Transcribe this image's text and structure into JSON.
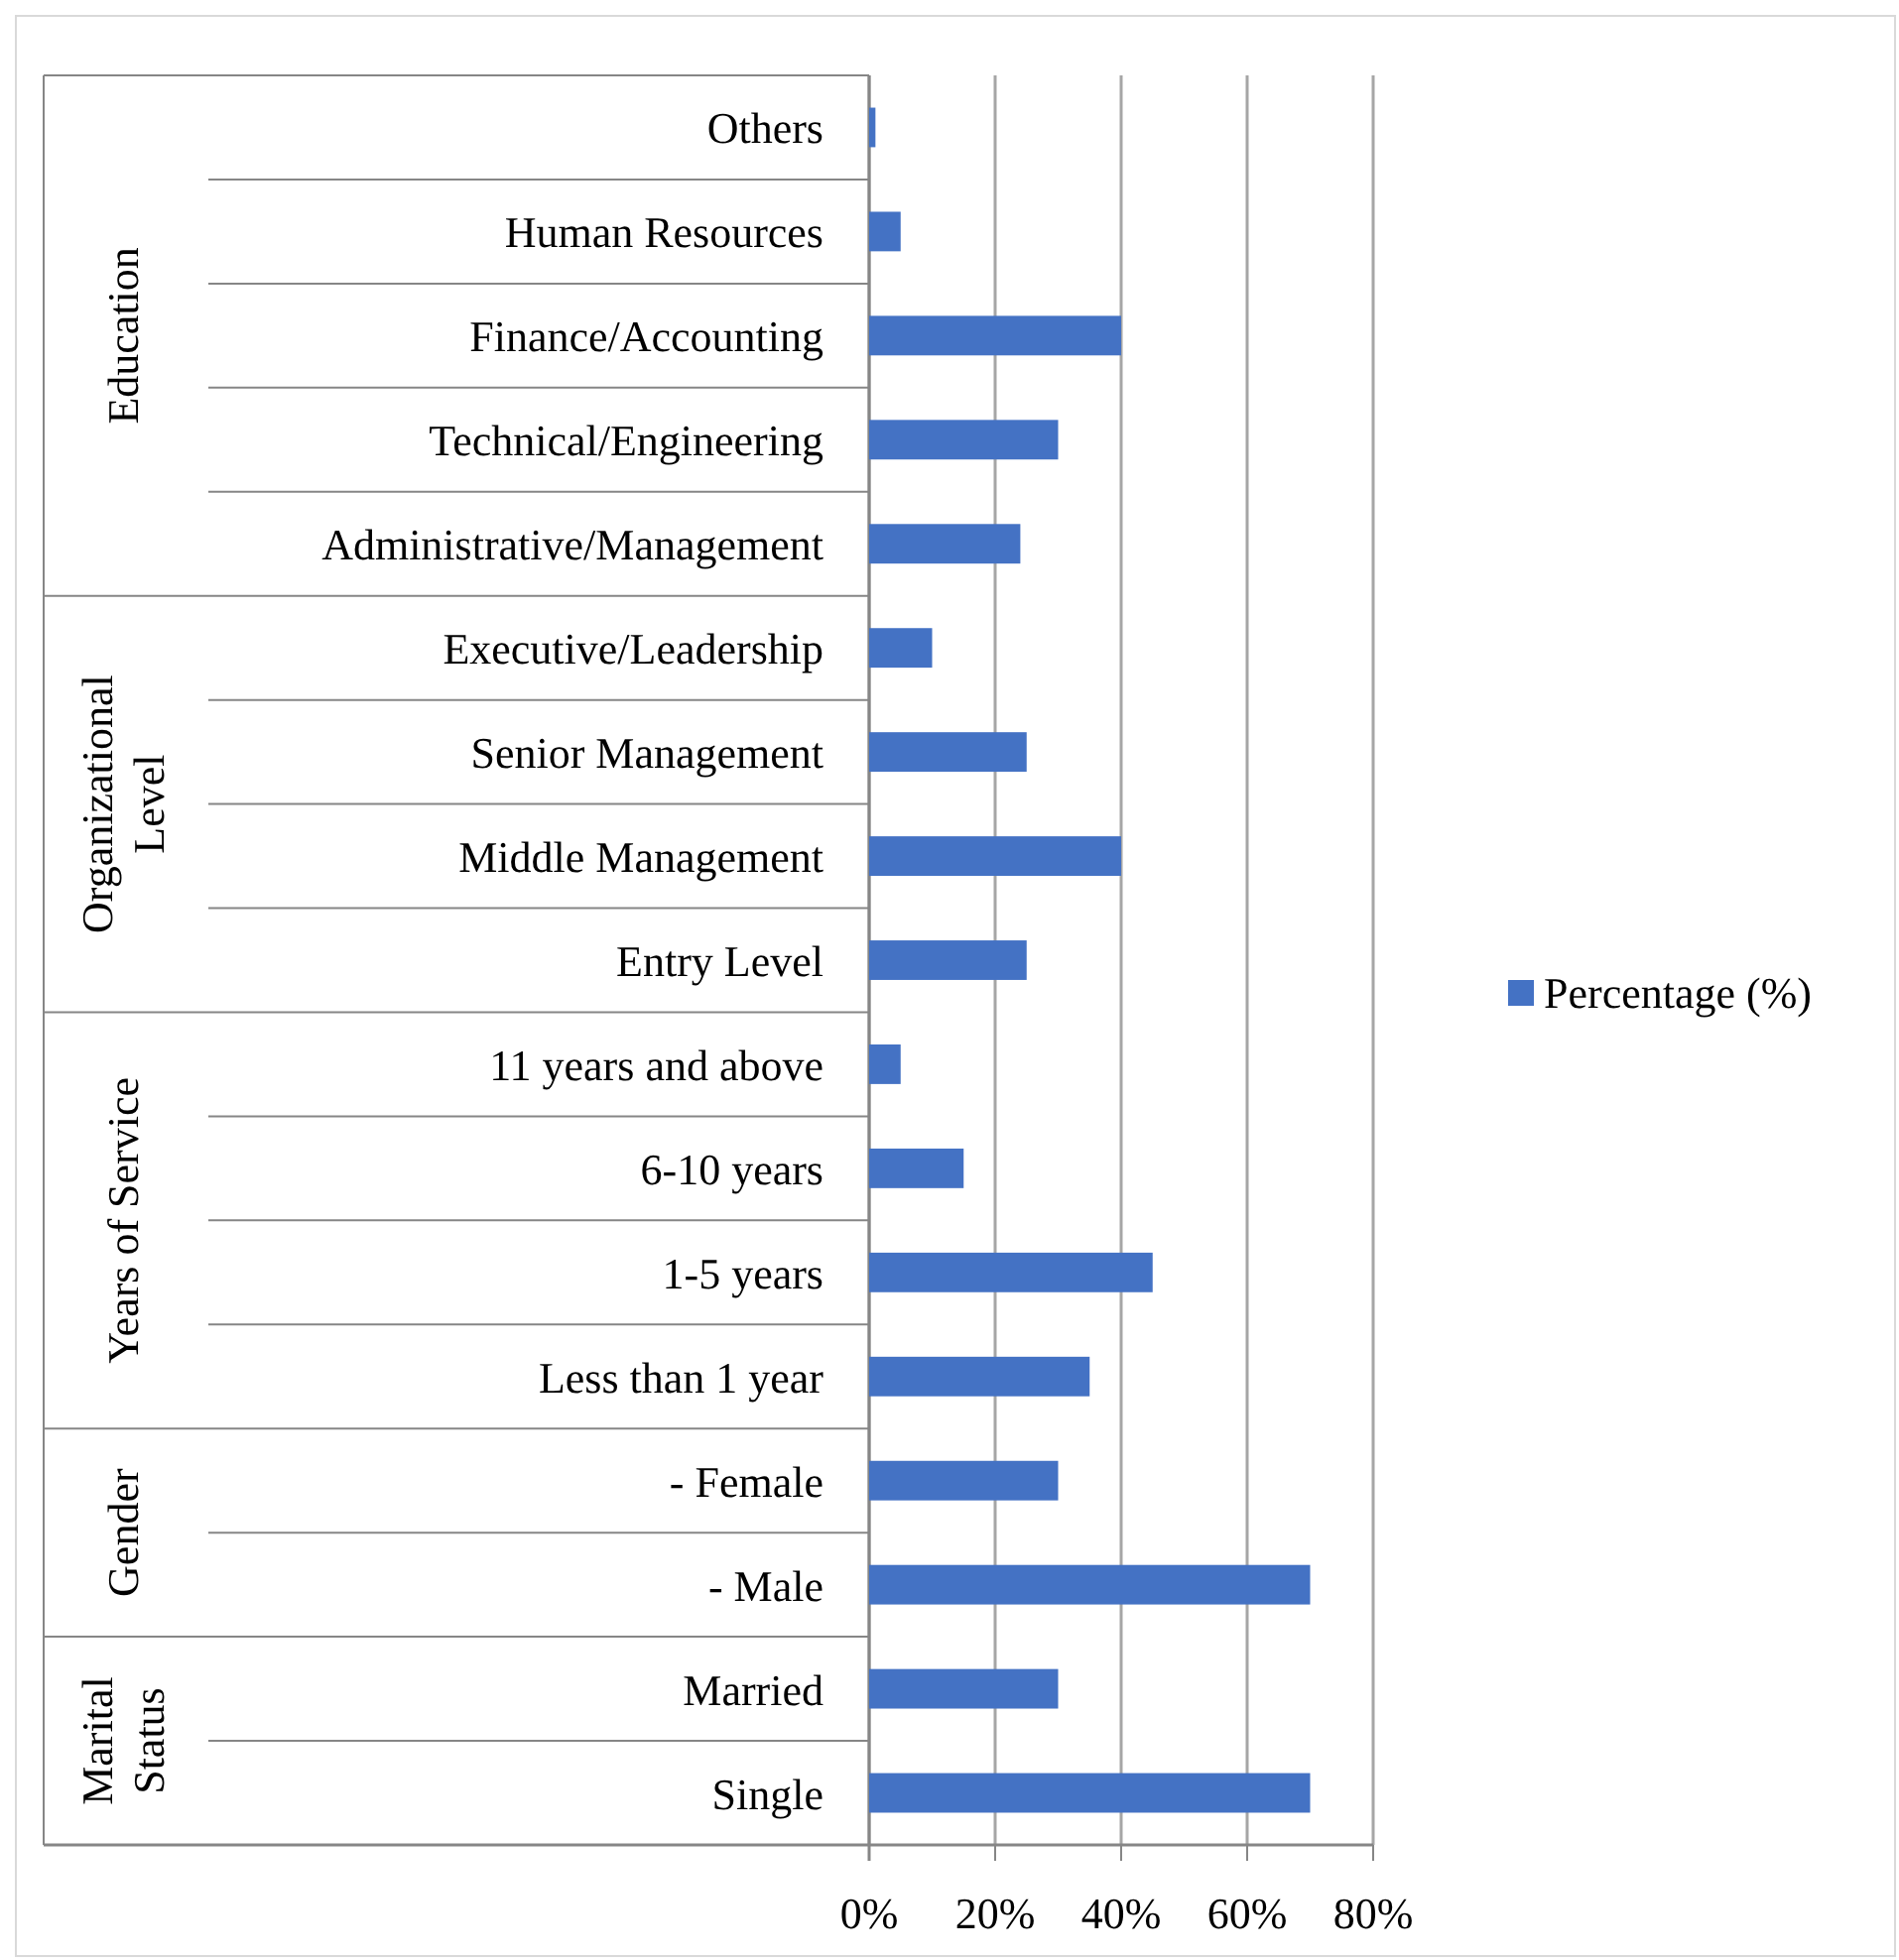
{
  "chart_data": {
    "type": "bar",
    "orientation": "horizontal",
    "categories": [
      "Others",
      "Human Resources",
      "Finance/Accounting",
      "Technical/Engineering",
      "Administrative/Management",
      "Executive/Leadership",
      "Senior Management",
      "Middle Management",
      "Entry Level",
      "11 years and above",
      "6-10 years",
      "1-5 years",
      "Less than 1 year",
      "- Female",
      "- Male",
      "Married",
      "Single"
    ],
    "series": [
      {
        "name": "Percentage (%)",
        "color": "#4472c4",
        "values": [
          1,
          5,
          40,
          30,
          24,
          10,
          25,
          40,
          25,
          5,
          15,
          45,
          35,
          30,
          70,
          30,
          70
        ]
      }
    ],
    "xlim": [
      0,
      80
    ],
    "xticks": [
      {
        "value": 0,
        "label": "0%"
      },
      {
        "value": 20,
        "label": "20%"
      },
      {
        "value": 40,
        "label": "40%"
      },
      {
        "value": 60,
        "label": "60%"
      },
      {
        "value": 80,
        "label": "80%"
      }
    ],
    "grid": "x",
    "legend": "right",
    "annotations": [
      "Education",
      "Organizational Level",
      "Years of Service",
      "Gender",
      "Marital Status"
    ]
  }
}
